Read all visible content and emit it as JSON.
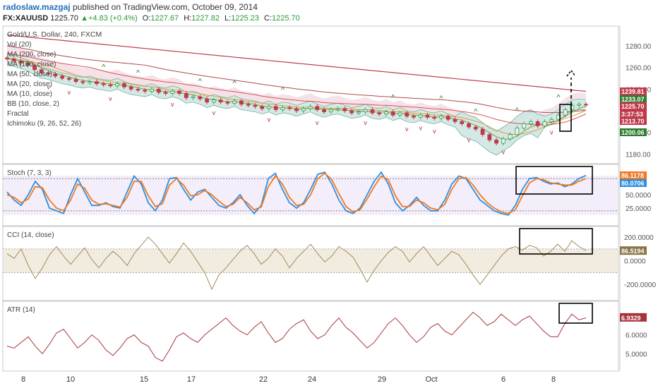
{
  "header": {
    "author": "radoslaw.mazgaj",
    "published_text": "published on TradingView.com, October 09, 2014",
    "symbol": "FX:XAUUSD",
    "last": "1225.70",
    "change": "▲+4.83 (+0.4%)",
    "o_label": "O:",
    "o_value": "1227.67",
    "h_label": "H:",
    "h_value": "1227.82",
    "l_label": "L:",
    "l_value": "1225.23",
    "c_label": "C:",
    "c_value": "1225.70"
  },
  "legend": [
    "Gold/U.S. Dollar, 240, FXCM",
    "Vol (20)",
    "MA (200, close)",
    "MA (100, close)",
    "MA (50, close)",
    "MA (20, close)",
    "MA (10, close)",
    "BB (10, close, 2)",
    "Fractal",
    "Ichimoku (9, 26, 52, 26)"
  ],
  "colors": {
    "up": "#3a9a5a",
    "down": "#c0394b",
    "ma200": "#c0394b",
    "cloud": "#f3dbe3",
    "bb": "#cfe7e3",
    "stochK": "#2f8ee0",
    "stochD": "#f07a1f",
    "cci": "#a08a5a",
    "atr": "#a8333a",
    "cciband": "#f2ece0",
    "stochband": "#f3eef9"
  },
  "chart_data": [
    {
      "type": "candlestick",
      "title": "Gold/U.S. Dollar, 240, FXCM",
      "x_ticks": [
        "8",
        "10",
        "15",
        "17",
        "22",
        "24",
        "29",
        "Oct",
        "6",
        "8"
      ],
      "y_ticks": [
        "1280.00",
        "1260.00",
        "1240.00",
        "1200.00",
        "1180.00"
      ],
      "ylim": [
        1175,
        1295
      ],
      "close_series": [
        1268,
        1266,
        1264,
        1262,
        1258,
        1255,
        1254,
        1252,
        1250,
        1249,
        1247,
        1246,
        1247,
        1245,
        1244,
        1243,
        1245,
        1242,
        1240,
        1239,
        1238,
        1240,
        1237,
        1236,
        1238,
        1236,
        1232,
        1233,
        1231,
        1228,
        1230,
        1228,
        1227,
        1229,
        1226,
        1225,
        1224,
        1222,
        1224,
        1221,
        1223,
        1222,
        1220,
        1222,
        1224,
        1221,
        1219,
        1221,
        1222,
        1220,
        1218,
        1219,
        1221,
        1218,
        1217,
        1219,
        1216,
        1218,
        1215,
        1214,
        1216,
        1214,
        1213,
        1215,
        1212,
        1210,
        1208,
        1205,
        1203,
        1198,
        1193,
        1190,
        1194,
        1198,
        1204,
        1208,
        1210,
        1206,
        1210,
        1212,
        1216,
        1221,
        1225,
        1226,
        1225.7
      ],
      "price_tags": [
        {
          "text": "1239.81",
          "color": "#c0394b"
        },
        {
          "text": "1233.07",
          "color": "#2e7d32"
        },
        {
          "text": "1225.70",
          "color": "#c0394b"
        },
        {
          "text": "3:37:53",
          "color": "#c0394b"
        },
        {
          "text": "1213.70",
          "color": "#c0394b"
        },
        {
          "text": "1200.06",
          "color": "#2e7d32"
        }
      ]
    },
    {
      "type": "line",
      "title": "Stoch (7, 3, 3)",
      "y_ticks": [
        "50.0000",
        "25.0000"
      ],
      "ylim": [
        0,
        100
      ],
      "last_value": "86.1178",
      "last_value2": "80.0706",
      "series": [
        {
          "name": "K",
          "values": [
            55,
            40,
            30,
            50,
            75,
            60,
            25,
            20,
            15,
            50,
            80,
            55,
            30,
            30,
            35,
            28,
            25,
            55,
            85,
            70,
            35,
            20,
            40,
            80,
            82,
            60,
            40,
            55,
            60,
            45,
            30,
            25,
            35,
            50,
            30,
            15,
            30,
            80,
            90,
            60,
            35,
            25,
            35,
            60,
            88,
            92,
            70,
            40,
            20,
            15,
            25,
            50,
            75,
            92,
            70,
            35,
            20,
            30,
            45,
            30,
            20,
            20,
            40,
            70,
            85,
            80,
            60,
            40,
            30,
            20,
            15,
            12,
            30,
            60,
            80,
            82,
            75,
            70,
            72,
            65,
            70,
            80,
            86
          ]
        },
        {
          "name": "D",
          "values": [
            50,
            45,
            35,
            42,
            65,
            63,
            40,
            25,
            20,
            40,
            70,
            62,
            40,
            32,
            33,
            30,
            27,
            45,
            75,
            75,
            48,
            28,
            33,
            68,
            80,
            68,
            48,
            50,
            58,
            50,
            38,
            28,
            32,
            45,
            35,
            22,
            27,
            65,
            85,
            70,
            45,
            30,
            32,
            50,
            80,
            90,
            78,
            52,
            28,
            18,
            22,
            42,
            65,
            85,
            78,
            48,
            28,
            28,
            40,
            35,
            25,
            22,
            32,
            60,
            80,
            82,
            68,
            50,
            35,
            25,
            18,
            15,
            22,
            48,
            72,
            80,
            78,
            72,
            70,
            68,
            68,
            75,
            80
          ]
        }
      ]
    },
    {
      "type": "line",
      "title": "CCI (14, close)",
      "y_ticks": [
        "200.0000",
        "0.0000",
        "-200.0000"
      ],
      "ylim": [
        -300,
        260
      ],
      "last_value": "86.5194",
      "series": [
        {
          "name": "CCI",
          "values": [
            60,
            20,
            100,
            -40,
            -150,
            -60,
            50,
            120,
            40,
            -30,
            40,
            110,
            10,
            -60,
            20,
            80,
            30,
            -40,
            60,
            130,
            200,
            140,
            60,
            -20,
            60,
            150,
            80,
            -10,
            -100,
            -240,
            -120,
            -60,
            10,
            80,
            130,
            60,
            -30,
            20,
            100,
            40,
            -60,
            20,
            80,
            140,
            60,
            -10,
            40,
            120,
            80,
            30,
            -70,
            -180,
            -80,
            0,
            70,
            120,
            80,
            -10,
            60,
            120,
            40,
            -40,
            20,
            80,
            50,
            -30,
            -120,
            -200,
            -120,
            -40,
            40,
            100,
            120,
            90,
            130,
            110,
            40,
            80,
            140,
            80,
            170,
            120,
            87
          ]
        }
      ]
    },
    {
      "type": "line",
      "title": "ATR (14)",
      "y_ticks": [
        "6.0000",
        "5.0000"
      ],
      "ylim": [
        4.3,
        7.6
      ],
      "last_value": "6.9329",
      "series": [
        {
          "name": "ATR",
          "values": [
            5.4,
            5.3,
            5.6,
            5.9,
            5.4,
            5.0,
            5.5,
            6.1,
            6.3,
            5.8,
            5.3,
            5.6,
            6.0,
            5.7,
            5.2,
            4.9,
            5.3,
            5.8,
            6.0,
            5.6,
            5.4,
            4.8,
            4.6,
            5.2,
            5.9,
            6.1,
            5.8,
            5.6,
            6.0,
            6.3,
            6.6,
            6.9,
            6.5,
            6.2,
            6.0,
            6.4,
            6.7,
            6.1,
            5.6,
            5.8,
            6.3,
            6.6,
            6.8,
            6.2,
            5.8,
            6.0,
            6.5,
            6.9,
            6.4,
            6.1,
            5.7,
            5.3,
            5.6,
            6.1,
            6.6,
            6.9,
            6.5,
            6.0,
            5.6,
            5.9,
            6.4,
            6.6,
            6.2,
            6.0,
            6.4,
            6.8,
            7.2,
            6.9,
            6.5,
            6.7,
            7.1,
            6.8,
            6.5,
            6.8,
            7.0,
            6.6,
            6.2,
            5.9,
            5.9,
            6.6,
            7.1,
            6.8,
            6.9
          ]
        }
      ]
    }
  ]
}
